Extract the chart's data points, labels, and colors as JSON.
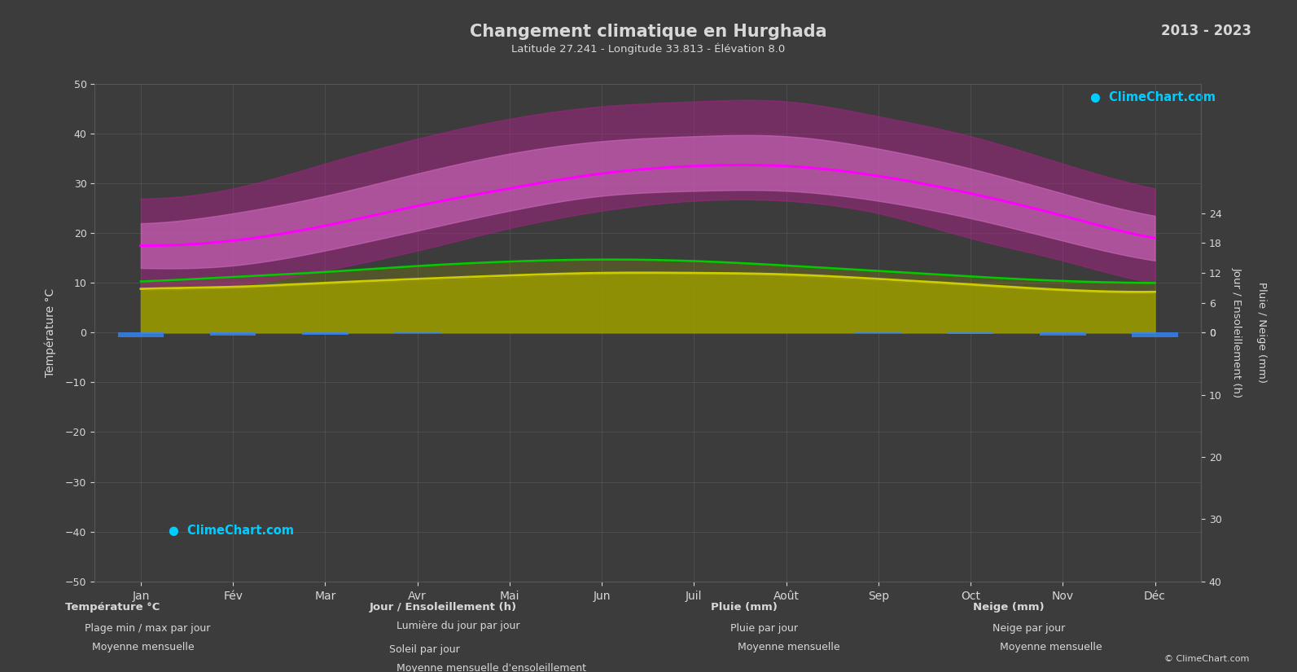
{
  "title": "Changement climatique en Hurghada",
  "subtitle": "Latitude 27.241 - Longitude 33.813 - Élévation 8.0",
  "year_range": "2013 - 2023",
  "bg_color": "#3c3c3c",
  "text_color": "#d8d8d8",
  "grid_color": "#575757",
  "months": [
    "Jan",
    "Fév",
    "Mar",
    "Avr",
    "Mai",
    "Jun",
    "Juil",
    "Août",
    "Sep",
    "Oct",
    "Nov",
    "Déc"
  ],
  "temp_ylim": [
    -50,
    50
  ],
  "sun_ylim": [
    0,
    24
  ],
  "rain_ylim": [
    0,
    40
  ],
  "temp_mean": [
    17.5,
    18.5,
    21.5,
    25.5,
    29.0,
    32.0,
    33.5,
    33.5,
    31.5,
    28.0,
    23.5,
    19.0
  ],
  "temp_max_mean": [
    22.0,
    24.0,
    27.5,
    32.0,
    36.0,
    38.5,
    39.5,
    39.5,
    37.0,
    33.0,
    28.0,
    23.5
  ],
  "temp_min_mean": [
    13.0,
    13.5,
    16.5,
    20.5,
    24.5,
    27.5,
    28.5,
    28.5,
    26.5,
    23.0,
    18.5,
    14.5
  ],
  "temp_max_high": [
    27.0,
    29.0,
    34.0,
    39.0,
    43.0,
    45.5,
    46.5,
    46.5,
    43.5,
    39.5,
    34.0,
    29.0
  ],
  "temp_min_low": [
    9.0,
    9.5,
    12.5,
    16.5,
    21.0,
    24.5,
    26.5,
    26.5,
    24.0,
    19.0,
    14.5,
    10.0
  ],
  "daylight_h": [
    10.3,
    11.2,
    12.2,
    13.4,
    14.3,
    14.7,
    14.4,
    13.5,
    12.4,
    11.3,
    10.4,
    10.0
  ],
  "sunshine_h": [
    8.5,
    9.0,
    9.8,
    10.5,
    11.2,
    11.8,
    12.0,
    11.5,
    10.5,
    9.5,
    8.5,
    8.0
  ],
  "sunshine_mean": [
    8.8,
    9.2,
    10.0,
    10.8,
    11.5,
    12.0,
    12.0,
    11.7,
    10.8,
    9.7,
    8.6,
    8.2
  ],
  "rain_mm": [
    0.8,
    0.5,
    0.3,
    0.1,
    0.0,
    0.0,
    0.0,
    0.0,
    0.1,
    0.2,
    0.5,
    0.8
  ],
  "color_temp_outer": "#aa2288",
  "color_temp_inner": "#cc66bb",
  "color_sunshine": "#999900",
  "color_daylight": "#00cc00",
  "color_temp_mean": "#ff00ff",
  "color_sun_mean": "#cccc00",
  "color_rain": "#3388ff",
  "color_snow": "#bbbbbb",
  "logo_color": "#00ccff"
}
